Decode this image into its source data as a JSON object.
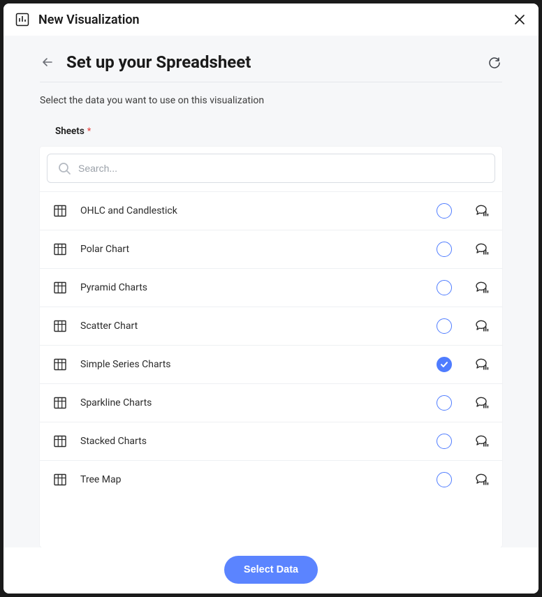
{
  "window": {
    "title": "New Visualization"
  },
  "page": {
    "title": "Set up your Spreadsheet",
    "subtitle": "Select the data you want to use on this visualization"
  },
  "section": {
    "label": "Sheets",
    "required_marker": "*"
  },
  "search": {
    "placeholder": "Search..."
  },
  "sheets": [
    {
      "label": "OHLC and Candlestick",
      "selected": false
    },
    {
      "label": "Polar Chart",
      "selected": false
    },
    {
      "label": "Pyramid Charts",
      "selected": false
    },
    {
      "label": "Scatter Chart",
      "selected": false
    },
    {
      "label": "Simple Series Charts",
      "selected": true
    },
    {
      "label": "Sparkline Charts",
      "selected": false
    },
    {
      "label": "Stacked Charts",
      "selected": false
    },
    {
      "label": "Tree Map",
      "selected": false
    }
  ],
  "footer": {
    "button_label": "Select Data"
  },
  "colors": {
    "accent": "#5b84ff",
    "radio_border": "#4f7cff",
    "body_bg": "#f6f7f9",
    "border": "#eef0f3",
    "text": "#1a1a1a"
  }
}
